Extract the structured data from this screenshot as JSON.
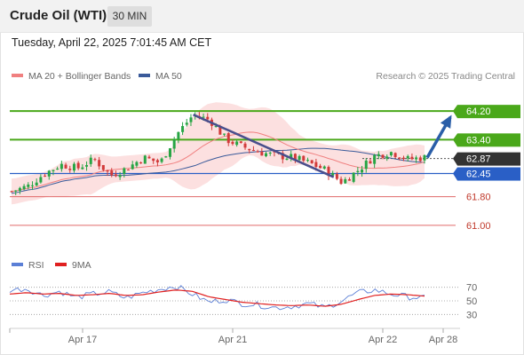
{
  "header": {
    "title": "Crude Oil (WTI)",
    "timeframe": "30 MIN"
  },
  "datetime": "Tuesday, April 22, 2025 7:01:45 AM CET",
  "legend": {
    "ma20_label": "MA 20 + Bollinger Bands",
    "ma50_label": "MA 50",
    "credit": "Research © 2025 Trading Central"
  },
  "rsi_legend": {
    "rsi_label": "RSI",
    "ma_label": "9MA"
  },
  "colors": {
    "ma20": "#f08080",
    "bollinger": "#fbd5d5",
    "ma50": "#3a5a9a",
    "candle_up": "#27a544",
    "candle_down": "#d23a3a",
    "resistance": "#4aa81a",
    "support_line": "#2a5fc6",
    "support_red": "#e06a6a",
    "current": "#333333",
    "rsi": "#5b7fd6",
    "rsi_ma": "#e02020"
  },
  "chart_data": {
    "type": "candlestick",
    "title": "Crude Oil (WTI)",
    "timeframe": "30 MIN",
    "ylim": [
      60.3,
      64.9
    ],
    "x_tick_labels": [
      "Apr 17",
      "Apr 21",
      "Apr 22",
      "Apr 28"
    ],
    "close_path": [
      61.95,
      62.1,
      62.45,
      62.7,
      62.6,
      62.85,
      62.4,
      62.6,
      62.9,
      62.75,
      63.55,
      64.1,
      63.95,
      63.4,
      63.2,
      63.05,
      62.95,
      62.9,
      62.75,
      62.55,
      62.2,
      62.55,
      62.95,
      63.05,
      62.85,
      62.9
    ],
    "levels": [
      {
        "label": "64.20",
        "value": 64.2,
        "role": "resistance",
        "style": "green"
      },
      {
        "label": "63.40",
        "value": 63.4,
        "role": "resistance",
        "style": "green"
      },
      {
        "label": "62.87",
        "value": 62.87,
        "role": "current",
        "style": "dark"
      },
      {
        "label": "62.45",
        "value": 62.45,
        "role": "support",
        "style": "blue"
      },
      {
        "label": "61.80",
        "value": 61.8,
        "role": "support",
        "style": "red"
      },
      {
        "label": "61.00",
        "value": 61.0,
        "role": "support",
        "style": "red"
      }
    ],
    "trendline": {
      "from": {
        "bar_fraction": 0.44,
        "price": 64.1
      },
      "to": {
        "bar_fraction": 0.78,
        "price": 62.35
      }
    },
    "forecast_arrow": {
      "from_price": 62.87,
      "to_price": 64.2
    },
    "indicators": [
      "MA 20 + Bollinger Bands",
      "MA 50"
    ],
    "rsi": {
      "ylim": [
        20,
        80
      ],
      "ticks": [
        "70",
        "50",
        "30"
      ],
      "series": [
        {
          "name": "RSI",
          "path": [
            66,
            68,
            58,
            64,
            55,
            60,
            63,
            54,
            62,
            67,
            72,
            60,
            48,
            52,
            46,
            44,
            40,
            42,
            46,
            40,
            50,
            62,
            66,
            60,
            56,
            54
          ]
        },
        {
          "name": "9MA",
          "path": [
            60,
            62,
            60,
            61,
            58,
            59,
            61,
            58,
            59,
            63,
            66,
            64,
            56,
            52,
            48,
            46,
            44,
            43,
            44,
            42,
            45,
            52,
            58,
            60,
            59,
            57
          ]
        }
      ]
    }
  }
}
